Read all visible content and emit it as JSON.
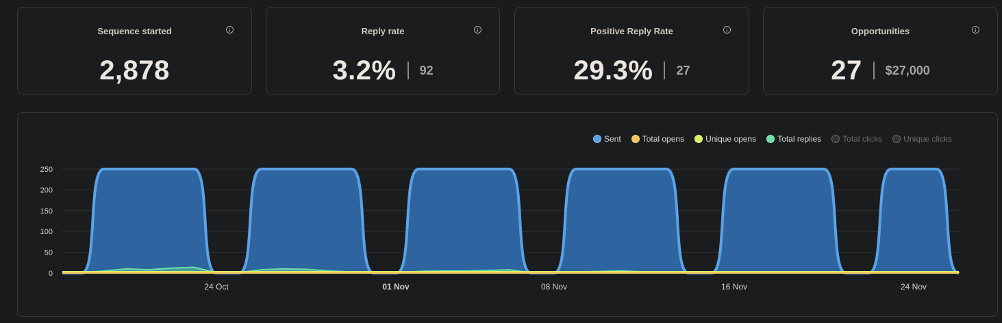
{
  "cards": [
    {
      "title": "Sequence started",
      "value": "2,878",
      "secondary": ""
    },
    {
      "title": "Reply rate",
      "value": "3.2%",
      "secondary": "92"
    },
    {
      "title": "Positive Reply Rate",
      "value": "29.3%",
      "secondary": "27"
    },
    {
      "title": "Opportunities",
      "value": "27",
      "secondary": "$27,000"
    }
  ],
  "legend": [
    {
      "label": "Sent",
      "color": "#5ba3e6",
      "active": true
    },
    {
      "label": "Total opens",
      "color": "#f5c356",
      "active": true
    },
    {
      "label": "Unique opens",
      "color": "#d8f069",
      "active": true
    },
    {
      "label": "Total replies",
      "color": "#6ee0a7",
      "active": true
    },
    {
      "label": "Total clicks",
      "color": "#4a4b4d",
      "active": false
    },
    {
      "label": "Unique clicks",
      "color": "#4a4b4d",
      "active": false
    }
  ],
  "chart_data": {
    "type": "area",
    "x_ticks": [
      "24 Oct",
      "01 Nov",
      "08 Nov",
      "16 Nov",
      "24 Nov"
    ],
    "y_ticks": [
      "250",
      "200",
      "150",
      "100",
      "50",
      "0"
    ],
    "ylim": [
      0,
      250
    ],
    "grid": true,
    "legend_position": "top-right",
    "series": [
      {
        "name": "Sent",
        "color": "#5ba3e6",
        "x": [
          "19 Oct",
          "20 Oct",
          "21 Oct",
          "22 Oct",
          "23 Oct",
          "26 Oct",
          "27 Oct",
          "28 Oct",
          "29 Oct",
          "30 Oct",
          "02 Nov",
          "03 Nov",
          "04 Nov",
          "05 Nov",
          "06 Nov",
          "09 Nov",
          "10 Nov",
          "11 Nov",
          "12 Nov",
          "13 Nov",
          "16 Nov",
          "17 Nov",
          "18 Nov",
          "19 Nov",
          "20 Nov",
          "23 Nov",
          "24 Nov",
          "25 Nov"
        ],
        "values": [
          250,
          250,
          250,
          250,
          250,
          250,
          250,
          250,
          250,
          250,
          250,
          250,
          250,
          250,
          250,
          250,
          250,
          250,
          250,
          250,
          250,
          250,
          250,
          250,
          250,
          250,
          250,
          250
        ]
      },
      {
        "name": "Total replies",
        "color": "#6ee0a7",
        "x": [
          "19 Oct",
          "20 Oct",
          "21 Oct",
          "22 Oct",
          "23 Oct",
          "26 Oct",
          "27 Oct",
          "28 Oct",
          "29 Oct",
          "30 Oct",
          "02 Nov",
          "03 Nov",
          "04 Nov",
          "05 Nov",
          "06 Nov",
          "09 Nov",
          "10 Nov",
          "11 Nov",
          "12 Nov",
          "13 Nov",
          "16 Nov",
          "17 Nov",
          "18 Nov",
          "19 Nov",
          "20 Nov",
          "23 Nov",
          "24 Nov",
          "25 Nov"
        ],
        "values": [
          5,
          10,
          8,
          12,
          14,
          8,
          10,
          9,
          5,
          3,
          4,
          5,
          5,
          6,
          8,
          3,
          4,
          5,
          3,
          2,
          1,
          1,
          1,
          2,
          1,
          1,
          2,
          1
        ]
      }
    ]
  }
}
